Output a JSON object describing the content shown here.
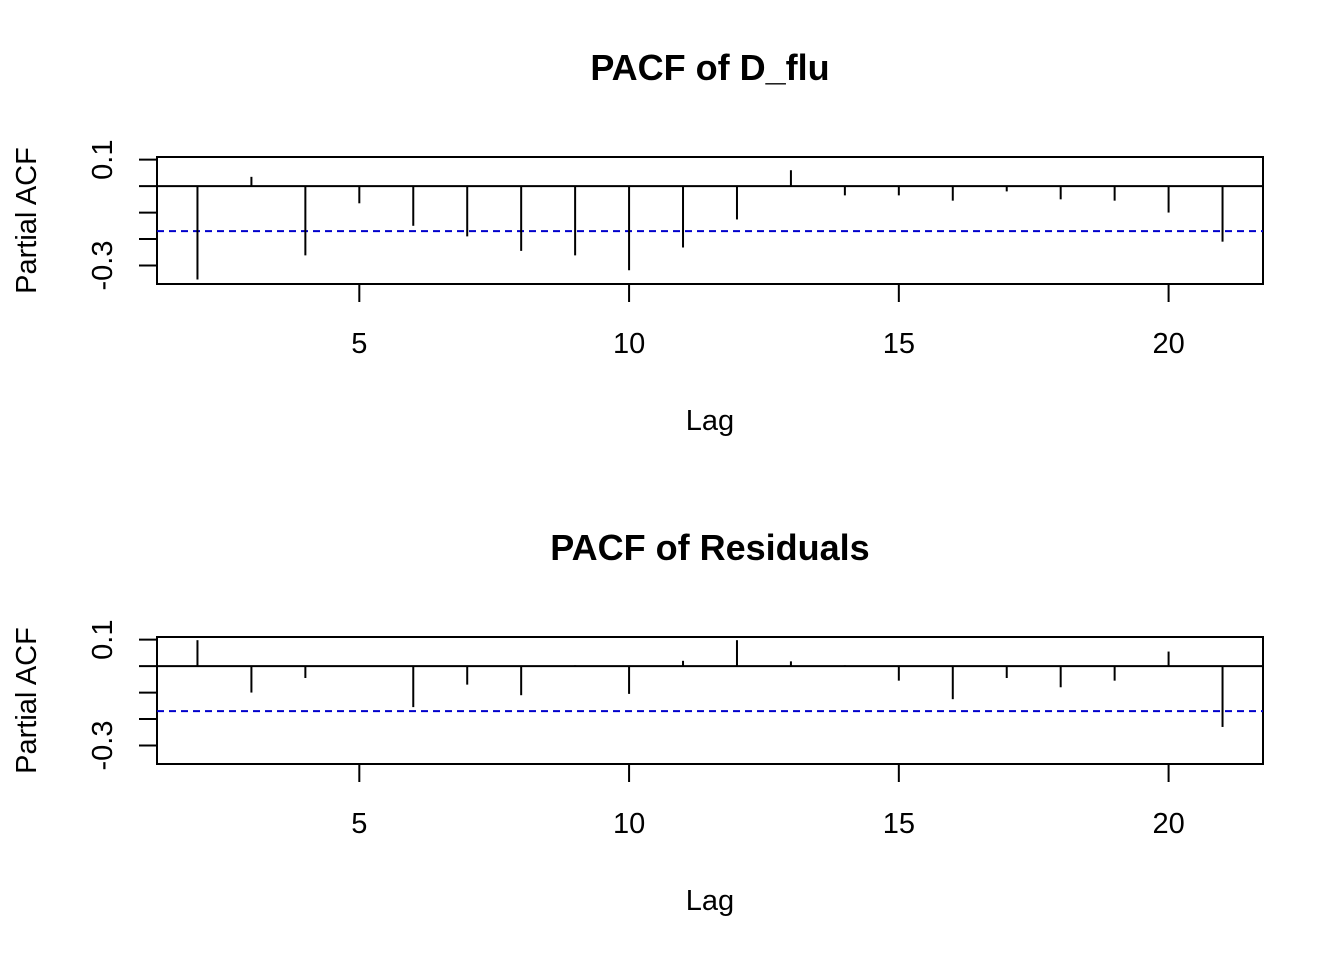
{
  "chart_data": [
    {
      "type": "bar",
      "subtype": "pacf-spike",
      "title": "PACF of D_flu",
      "xlabel": "Lag",
      "ylabel": "Partial ACF",
      "xlim": [
        1.25,
        21.75
      ],
      "ylim": [
        -0.37,
        0.11
      ],
      "x_ticks": [
        "5",
        "10",
        "15",
        "20"
      ],
      "y_ticks": [
        "-0.3",
        "0.1"
      ],
      "confidence_bound": -0.17,
      "confidence_color": "#0000cc",
      "x": [
        2,
        3,
        4,
        5,
        6,
        7,
        8,
        9,
        10,
        11,
        12,
        13,
        14,
        15,
        16,
        17,
        18,
        19,
        20,
        21
      ],
      "values": [
        -0.353,
        0.035,
        -0.262,
        -0.065,
        -0.15,
        -0.19,
        -0.245,
        -0.262,
        -0.318,
        -0.232,
        -0.126,
        0.06,
        -0.035,
        -0.035,
        -0.055,
        -0.02,
        -0.05,
        -0.055,
        -0.1,
        -0.21
      ]
    },
    {
      "type": "bar",
      "subtype": "pacf-spike",
      "title": "PACF of Residuals",
      "xlabel": "Lag",
      "ylabel": "Partial ACF",
      "xlim": [
        1.25,
        21.75
      ],
      "ylim": [
        -0.37,
        0.11
      ],
      "x_ticks": [
        "5",
        "10",
        "15",
        "20"
      ],
      "y_ticks": [
        "-0.3",
        "0.1"
      ],
      "confidence_bound": -0.17,
      "confidence_color": "#0000cc",
      "x": [
        2,
        3,
        4,
        5,
        6,
        7,
        8,
        9,
        10,
        11,
        12,
        13,
        14,
        15,
        16,
        17,
        18,
        19,
        20,
        21
      ],
      "values": [
        0.098,
        -0.1,
        -0.045,
        -0.003,
        -0.155,
        -0.07,
        -0.11,
        0.003,
        -0.105,
        0.02,
        0.098,
        0.018,
        0.003,
        -0.055,
        -0.125,
        -0.045,
        -0.08,
        -0.055,
        0.055,
        -0.23
      ]
    }
  ]
}
